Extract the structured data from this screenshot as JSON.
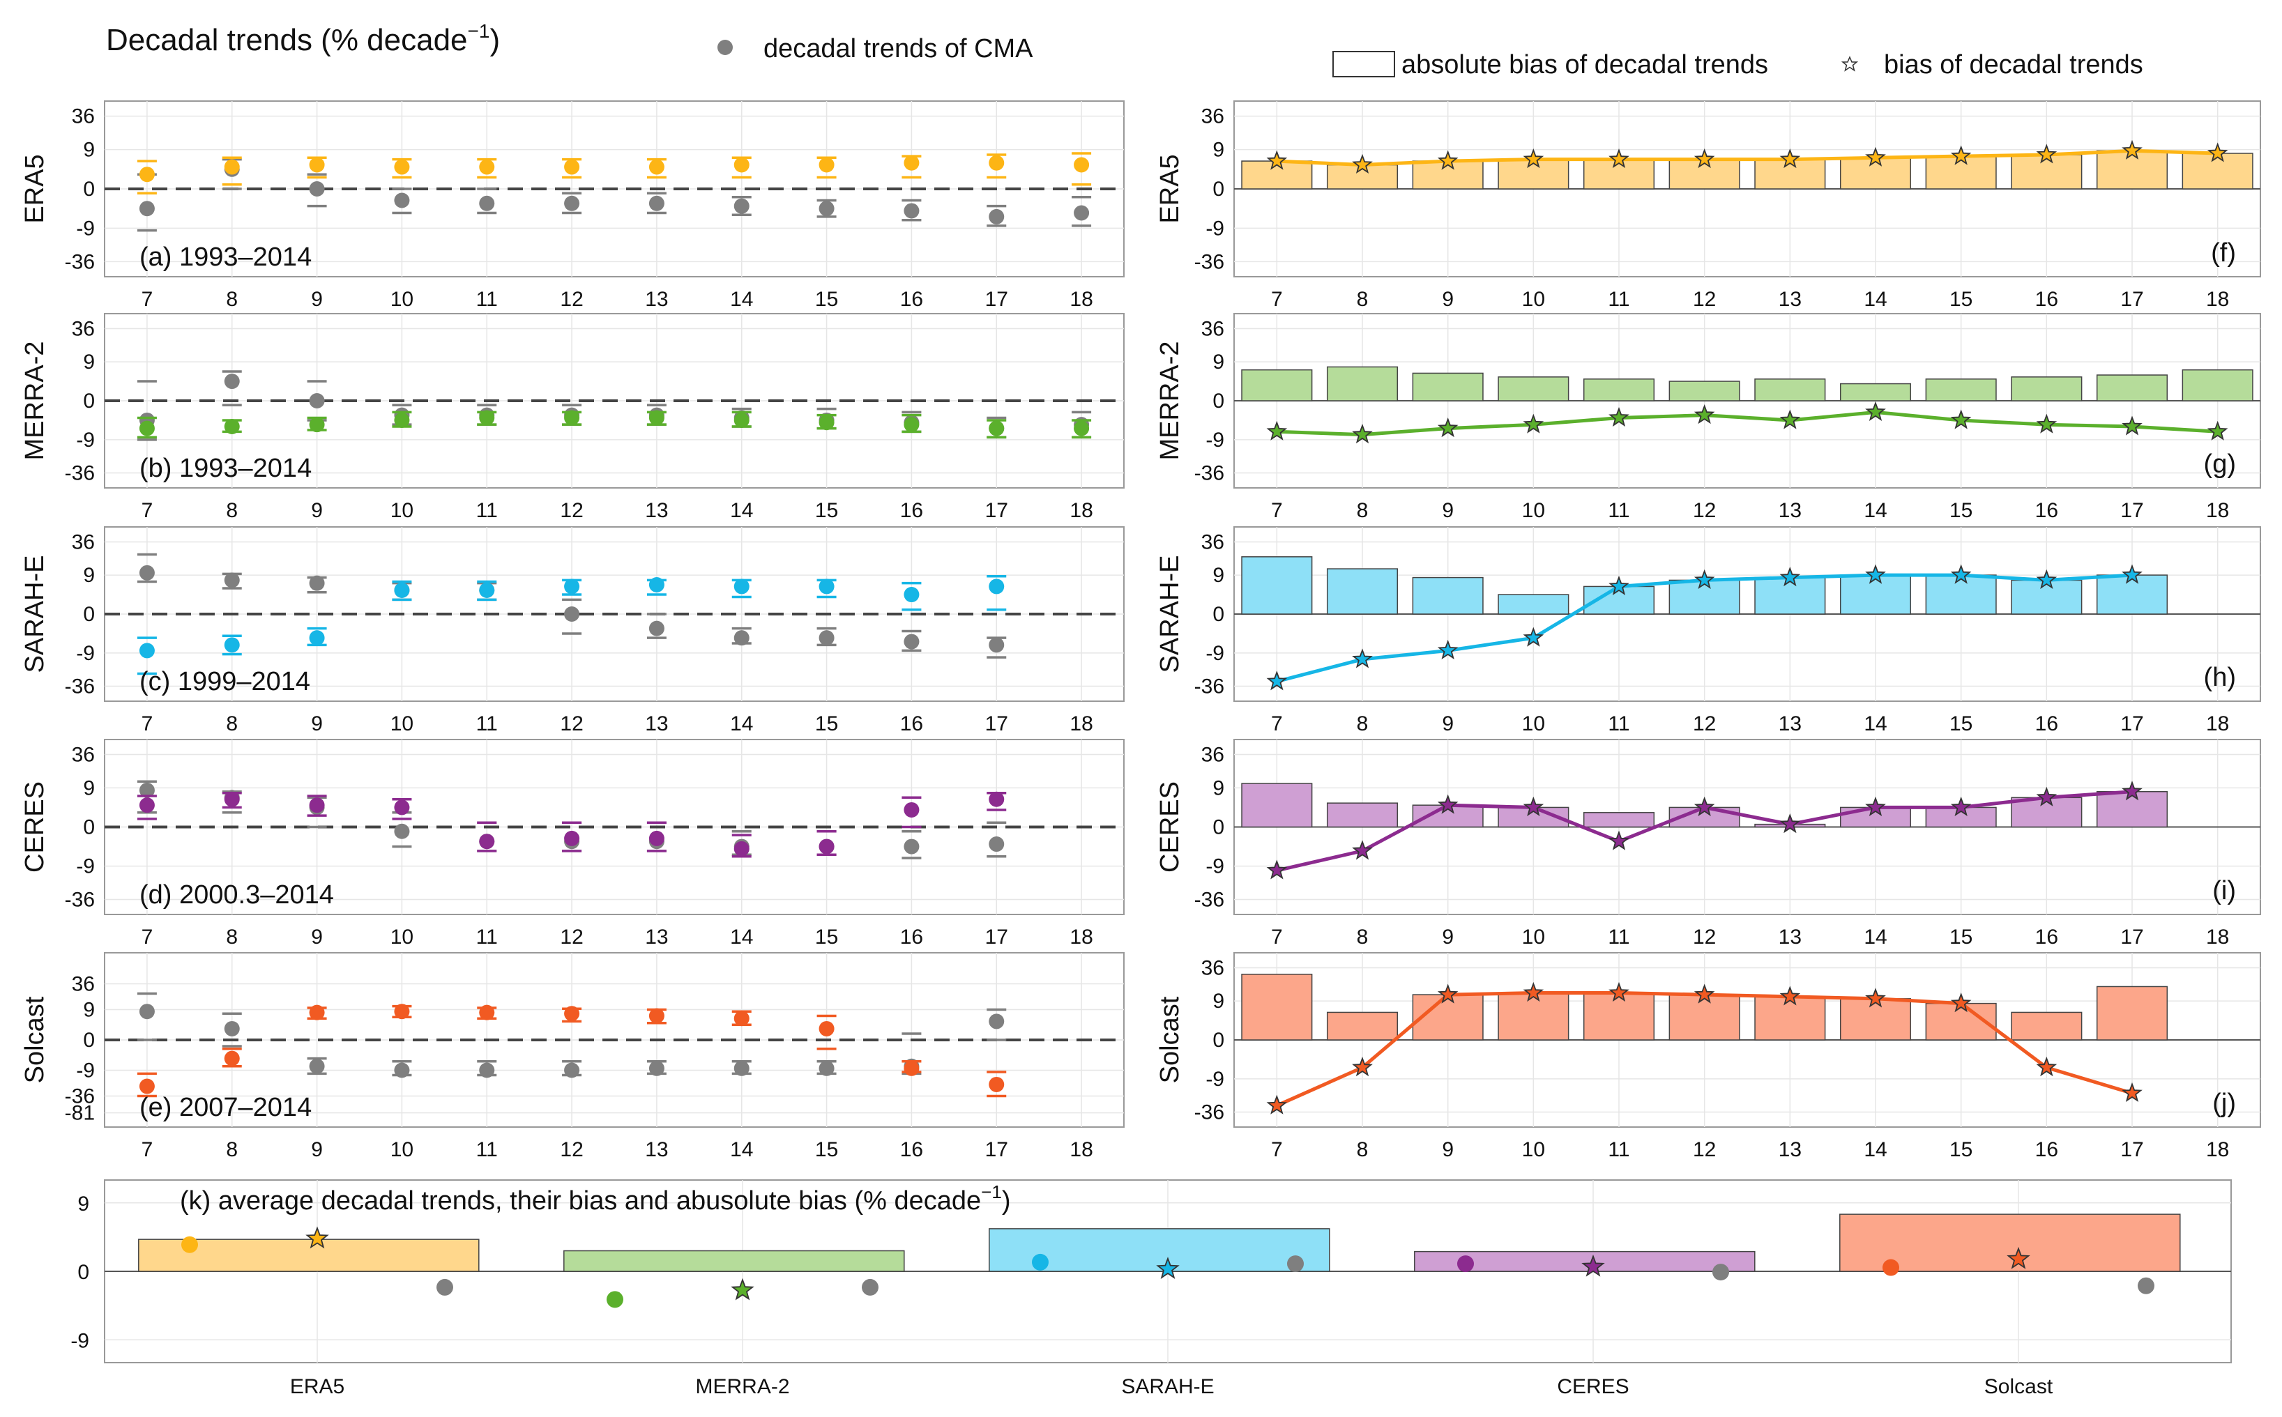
{
  "title": "Decadal trends (% decade",
  "title_exp": "−1",
  "title_close": ")",
  "legend": {
    "cma_trend": "decadal trends of CMA",
    "abs_bias": "absolute bias of decadal trends",
    "bias": "bias of decadal trends"
  },
  "colors": {
    "ERA5": "#fdb515",
    "MERRA-2": "#5bb02c",
    "SARAH-E": "#16b6e6",
    "CERES": "#8c2b8f",
    "Solcast": "#f15a22",
    "CMA": "#7f7f7f",
    "ERA5_fill": "#ffd78c",
    "MERRA-2_fill": "#b5dc9a",
    "SARAH-E_fill": "#8ee0f7",
    "CERES_fill": "#cf9fd3",
    "Solcast_fill": "#fca68a"
  },
  "chart_data": [
    {
      "type": "scatter",
      "panel": "a",
      "name": "ERA5",
      "label": "(a) 1993–2014",
      "x": [
        7,
        8,
        9,
        10,
        11,
        12,
        13,
        14,
        15,
        16,
        17,
        18
      ],
      "ytick_labels": [
        "36",
        "9",
        "0",
        "-9",
        "-36"
      ],
      "ytick_values": [
        36,
        9,
        0,
        -9,
        -36
      ],
      "series": [
        {
          "name": "ERA5",
          "values": [
            2,
            3.5,
            4,
            3.5,
            3.5,
            3.5,
            3.5,
            4,
            4,
            4.5,
            4.5,
            4
          ],
          "err_lo": [
            -0.5,
            0.5,
            1.5,
            1.5,
            1.5,
            1.5,
            1.5,
            1.5,
            1.5,
            1.5,
            1.5,
            0.5
          ],
          "err_hi": [
            5,
            6,
            6,
            5.5,
            5.5,
            5.5,
            5.5,
            6,
            6,
            6.5,
            7,
            7.5
          ]
        },
        {
          "name": "CMA",
          "values": [
            -3,
            3,
            0,
            -1.5,
            -2,
            -2,
            -2,
            -2.5,
            -3,
            -3.5,
            -5,
            -4
          ],
          "err_lo": [
            -10,
            0,
            -2.5,
            -4,
            -4,
            -4,
            -4,
            -4.5,
            -5,
            -6,
            -8,
            -8
          ],
          "err_hi": [
            2,
            5.5,
            2,
            0,
            0,
            -0.5,
            -0.5,
            -1,
            -1.5,
            -1.5,
            -2.5,
            -1
          ]
        }
      ]
    },
    {
      "type": "scatter",
      "panel": "b",
      "name": "MERRA-2",
      "label": "(b) 1993–2014",
      "x": [
        7,
        8,
        9,
        10,
        11,
        12,
        13,
        14,
        15,
        16,
        17,
        18
      ],
      "ytick_labels": [
        "36",
        "9",
        "0",
        "-9",
        "-36"
      ],
      "ytick_values": [
        36,
        9,
        0,
        -9,
        -36
      ],
      "series": [
        {
          "name": "MERRA-2",
          "values": [
            -5,
            -4.5,
            -4,
            -3,
            -2.5,
            -2.5,
            -2.5,
            -3,
            -3.5,
            -4,
            -5,
            -5
          ],
          "err_lo": [
            -8,
            -6,
            -5.5,
            -4.5,
            -4,
            -4,
            -4,
            -4.5,
            -5,
            -6,
            -8,
            -8
          ],
          "err_hi": [
            -2.5,
            -3,
            -2.5,
            -1.5,
            -1.5,
            -1.5,
            -1.5,
            -1.5,
            -2,
            -2,
            -3,
            -3
          ]
        },
        {
          "name": "CMA",
          "values": [
            -3,
            3,
            0,
            -2,
            -2,
            -2,
            -2,
            -2.5,
            -3,
            -3.5,
            -5,
            -4
          ],
          "err_lo": [
            -9,
            -0.5,
            -3,
            -4,
            -4,
            -4,
            -4,
            -4.5,
            -5,
            -6,
            -8,
            -8
          ],
          "err_hi": [
            3,
            5.5,
            3,
            -0.5,
            -0.5,
            -0.5,
            -0.5,
            -1,
            -1,
            -1.5,
            -2.5,
            -1.5
          ]
        }
      ]
    },
    {
      "type": "scatter",
      "panel": "c",
      "name": "SARAH-E",
      "label": "(c) 1999–2014",
      "x": [
        7,
        8,
        9,
        10,
        11,
        12,
        13,
        14,
        15,
        16,
        17,
        18
      ],
      "ytick_labels": [
        "36",
        "9",
        "0",
        "-9",
        "-36"
      ],
      "ytick_values": [
        36,
        9,
        0,
        -9,
        -36
      ],
      "series": [
        {
          "name": "SARAH-E",
          "values": [
            -8,
            -6,
            -4,
            4,
            4,
            5,
            5.5,
            5,
            5,
            3,
            5,
            null
          ],
          "err_lo": [
            -22,
            -9.5,
            -6,
            2,
            2,
            3,
            3,
            2.5,
            2.5,
            0.5,
            0.5,
            null
          ],
          "err_hi": [
            -4,
            -3.5,
            -2,
            6.5,
            6.5,
            7,
            7,
            7,
            7,
            6,
            8.5,
            null
          ]
        },
        {
          "name": "CMA",
          "values": [
            10,
            7,
            6,
            4,
            4,
            0,
            -2,
            -4,
            -4,
            -5,
            -6,
            null
          ],
          "err_lo": [
            6.5,
            4.5,
            3.5,
            2,
            2,
            -3,
            -4,
            -5.5,
            -6,
            -8,
            -11,
            null
          ],
          "err_hi": [
            22,
            9.5,
            8,
            6,
            6,
            2,
            0,
            -2,
            -2,
            -2.5,
            -4,
            null
          ]
        }
      ]
    },
    {
      "type": "scatter",
      "panel": "d",
      "name": "CERES",
      "label": "(d) 2000.3–2014",
      "x": [
        7,
        8,
        9,
        10,
        11,
        12,
        13,
        14,
        15,
        16,
        17,
        18
      ],
      "ytick_labels": [
        "36",
        "9",
        "0",
        "-9",
        "-36"
      ],
      "ytick_values": [
        36,
        9,
        0,
        -9,
        -36
      ],
      "series": [
        {
          "name": "CERES",
          "values": [
            3.5,
            5,
            3.5,
            3,
            -2,
            -1.5,
            -1.5,
            -3.5,
            -3,
            2.5,
            5,
            null
          ],
          "err_lo": [
            1,
            3,
            1.5,
            1,
            -4,
            -4,
            -4,
            -5.5,
            -5,
            0,
            2.5,
            null
          ],
          "err_hi": [
            6,
            7,
            6,
            5,
            0.5,
            0.5,
            0.5,
            -1,
            -0.5,
            5.5,
            7,
            null
          ]
        },
        {
          "name": "CMA",
          "values": [
            8,
            5.5,
            3,
            -0.5,
            -2,
            -2,
            -2,
            -3,
            -3,
            -3,
            -2.5,
            null
          ],
          "err_lo": [
            2,
            2,
            0,
            -3,
            -4,
            -4,
            -4,
            -5,
            -5,
            -6,
            -5.5,
            null
          ],
          "err_hi": [
            12,
            7.5,
            5.5,
            2,
            0.5,
            0.5,
            0.5,
            -0.5,
            -0.5,
            -0.5,
            0.5,
            null
          ]
        }
      ]
    },
    {
      "type": "scatter",
      "panel": "e",
      "name": "Solcast",
      "label": "(e) 2007–2014",
      "x": [
        7,
        8,
        9,
        10,
        11,
        12,
        13,
        14,
        15,
        16,
        17,
        18
      ],
      "ytick_labels": [
        "36",
        "9",
        "0",
        "-9",
        "-36",
        "-81"
      ],
      "ytick_values": [
        36,
        9,
        0,
        -9,
        -36,
        -81
      ],
      "series": [
        {
          "name": "Solcast",
          "values": [
            -22,
            -4,
            7.5,
            8,
            7.5,
            7,
            6,
            5,
            2,
            -8,
            -20,
            null
          ],
          "err_lo": [
            -36,
            -7,
            5,
            5.5,
            5,
            4,
            3.5,
            3,
            -1.5,
            -10,
            -36,
            null
          ],
          "err_hi": [
            -11,
            -1.5,
            10,
            11,
            10,
            9.5,
            9,
            8,
            6,
            -5,
            -10,
            null
          ]
        },
        {
          "name": "CMA",
          "values": [
            8,
            2,
            -7,
            -9,
            -9,
            -9,
            -8,
            -8,
            -8,
            -7,
            4,
            null
          ],
          "err_lo": [
            0,
            -1,
            -11,
            -12,
            -12,
            -12,
            -11,
            -11,
            -11,
            -11,
            0,
            null
          ],
          "err_hi": [
            22,
            7,
            -4,
            -5,
            -5,
            -5,
            -5,
            -5,
            -5,
            1,
            9,
            null
          ]
        }
      ]
    },
    {
      "type": "bar",
      "panel": "f",
      "name": "ERA5",
      "label": "(f)",
      "x": [
        7,
        8,
        9,
        10,
        11,
        12,
        13,
        14,
        15,
        16,
        17,
        18
      ],
      "ytick_labels": [
        "36",
        "9",
        "0",
        "-9",
        "-36"
      ],
      "ytick_values": [
        36,
        9,
        0,
        -9,
        -36
      ],
      "abs_bias": [
        5,
        4,
        5,
        5.5,
        5.5,
        5.5,
        5.5,
        6,
        6.5,
        7,
        8.5,
        7.5
      ],
      "bias": [
        5,
        4,
        5,
        5.5,
        5.5,
        5.5,
        5.5,
        6,
        6.5,
        7,
        8.5,
        7.5
      ]
    },
    {
      "type": "bar",
      "panel": "g",
      "name": "MERRA-2",
      "label": "(g)",
      "x": [
        7,
        8,
        9,
        10,
        11,
        12,
        13,
        14,
        15,
        16,
        17,
        18
      ],
      "ytick_labels": [
        "36",
        "9",
        "0",
        "-9",
        "-36"
      ],
      "ytick_values": [
        36,
        9,
        0,
        -9,
        -36
      ],
      "abs_bias": [
        6,
        7,
        5,
        4,
        3.5,
        3,
        3.5,
        2.5,
        3.5,
        4,
        4.5,
        6
      ],
      "bias": [
        -6,
        -7,
        -5,
        -4,
        -2.5,
        -2,
        -3,
        -1.5,
        -3,
        -4,
        -4.5,
        -6
      ]
    },
    {
      "type": "bar",
      "panel": "h",
      "name": "SARAH-E",
      "label": "(h)",
      "x": [
        7,
        8,
        9,
        10,
        11,
        12,
        13,
        14,
        15,
        16,
        17,
        18
      ],
      "ytick_labels": [
        "36",
        "9",
        "0",
        "-9",
        "-36"
      ],
      "ytick_values": [
        36,
        9,
        0,
        -9,
        -36
      ],
      "abs_bias": [
        20,
        12,
        8,
        3,
        5,
        7,
        8,
        9,
        9,
        7,
        9,
        null
      ],
      "bias": [
        -30,
        -12,
        -8,
        -4,
        5,
        7,
        8,
        9,
        9,
        7,
        9,
        null
      ]
    },
    {
      "type": "bar",
      "panel": "i",
      "name": "CERES",
      "label": "(i)",
      "x": [
        7,
        8,
        9,
        10,
        11,
        12,
        13,
        14,
        15,
        16,
        17,
        18
      ],
      "ytick_labels": [
        "36",
        "9",
        "0",
        "-9",
        "-36"
      ],
      "ytick_values": [
        36,
        9,
        0,
        -9,
        -36
      ],
      "abs_bias": [
        11,
        4,
        3.5,
        3,
        2,
        3,
        0.3,
        3,
        3,
        5.5,
        7.5,
        null
      ],
      "bias": [
        -11,
        -4,
        3.5,
        3,
        -2,
        3,
        0.3,
        3,
        3,
        5.5,
        7.5,
        null
      ]
    },
    {
      "type": "bar",
      "panel": "j",
      "name": "Solcast",
      "label": "(j)",
      "x": [
        7,
        8,
        9,
        10,
        11,
        12,
        13,
        14,
        15,
        16,
        17,
        18
      ],
      "ytick_labels": [
        "36",
        "9",
        "0",
        "-9",
        "-36"
      ],
      "ytick_values": [
        36,
        9,
        0,
        -9,
        -36
      ],
      "abs_bias": [
        28,
        5,
        12,
        13,
        13,
        12,
        11,
        10,
        8,
        5,
        17,
        null
      ],
      "bias": [
        -28,
        -5,
        12,
        13,
        13,
        12,
        11,
        10,
        8,
        -5,
        -17,
        null
      ]
    },
    {
      "type": "bar",
      "panel": "k",
      "title": "(k) average decadal trends, their bias and abusolute bias (% decade",
      "title_exp": "−1",
      "title_close": ")",
      "categories": [
        "ERA5",
        "MERRA-2",
        "SARAH-E",
        "CERES",
        "Solcast"
      ],
      "ytick_labels": [
        "9",
        "0",
        "-9"
      ],
      "ytick_values": [
        9,
        0,
        -9
      ],
      "ylim": [
        -12,
        12
      ],
      "abs_bias": [
        4.2,
        2.7,
        5.6,
        2.6,
        7.5
      ],
      "product_trend": [
        3.5,
        -3.7,
        1.2,
        1.0,
        0.5
      ],
      "bias": [
        4.3,
        -2.5,
        0.3,
        0.6,
        1.6
      ],
      "cma_trend": [
        -2.1,
        -2.1,
        1.0,
        -0.1,
        -1.9
      ]
    }
  ]
}
